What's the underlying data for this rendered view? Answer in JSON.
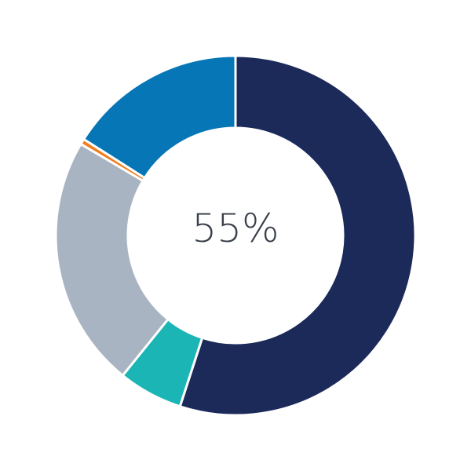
{
  "chart_data": {
    "type": "pie",
    "donut": true,
    "center_label": "55%",
    "slices": [
      {
        "value": 55.0,
        "color": "#1c2a5a"
      },
      {
        "value": 5.8,
        "color": "#1bb5b5"
      },
      {
        "value": 22.7,
        "color": "#a9b4c2"
      },
      {
        "value": 0.5,
        "color": "#f07f1f"
      },
      {
        "value": 16.0,
        "color": "#0776b6"
      }
    ],
    "start": "top",
    "direction": "clockwise",
    "legend": "none"
  }
}
